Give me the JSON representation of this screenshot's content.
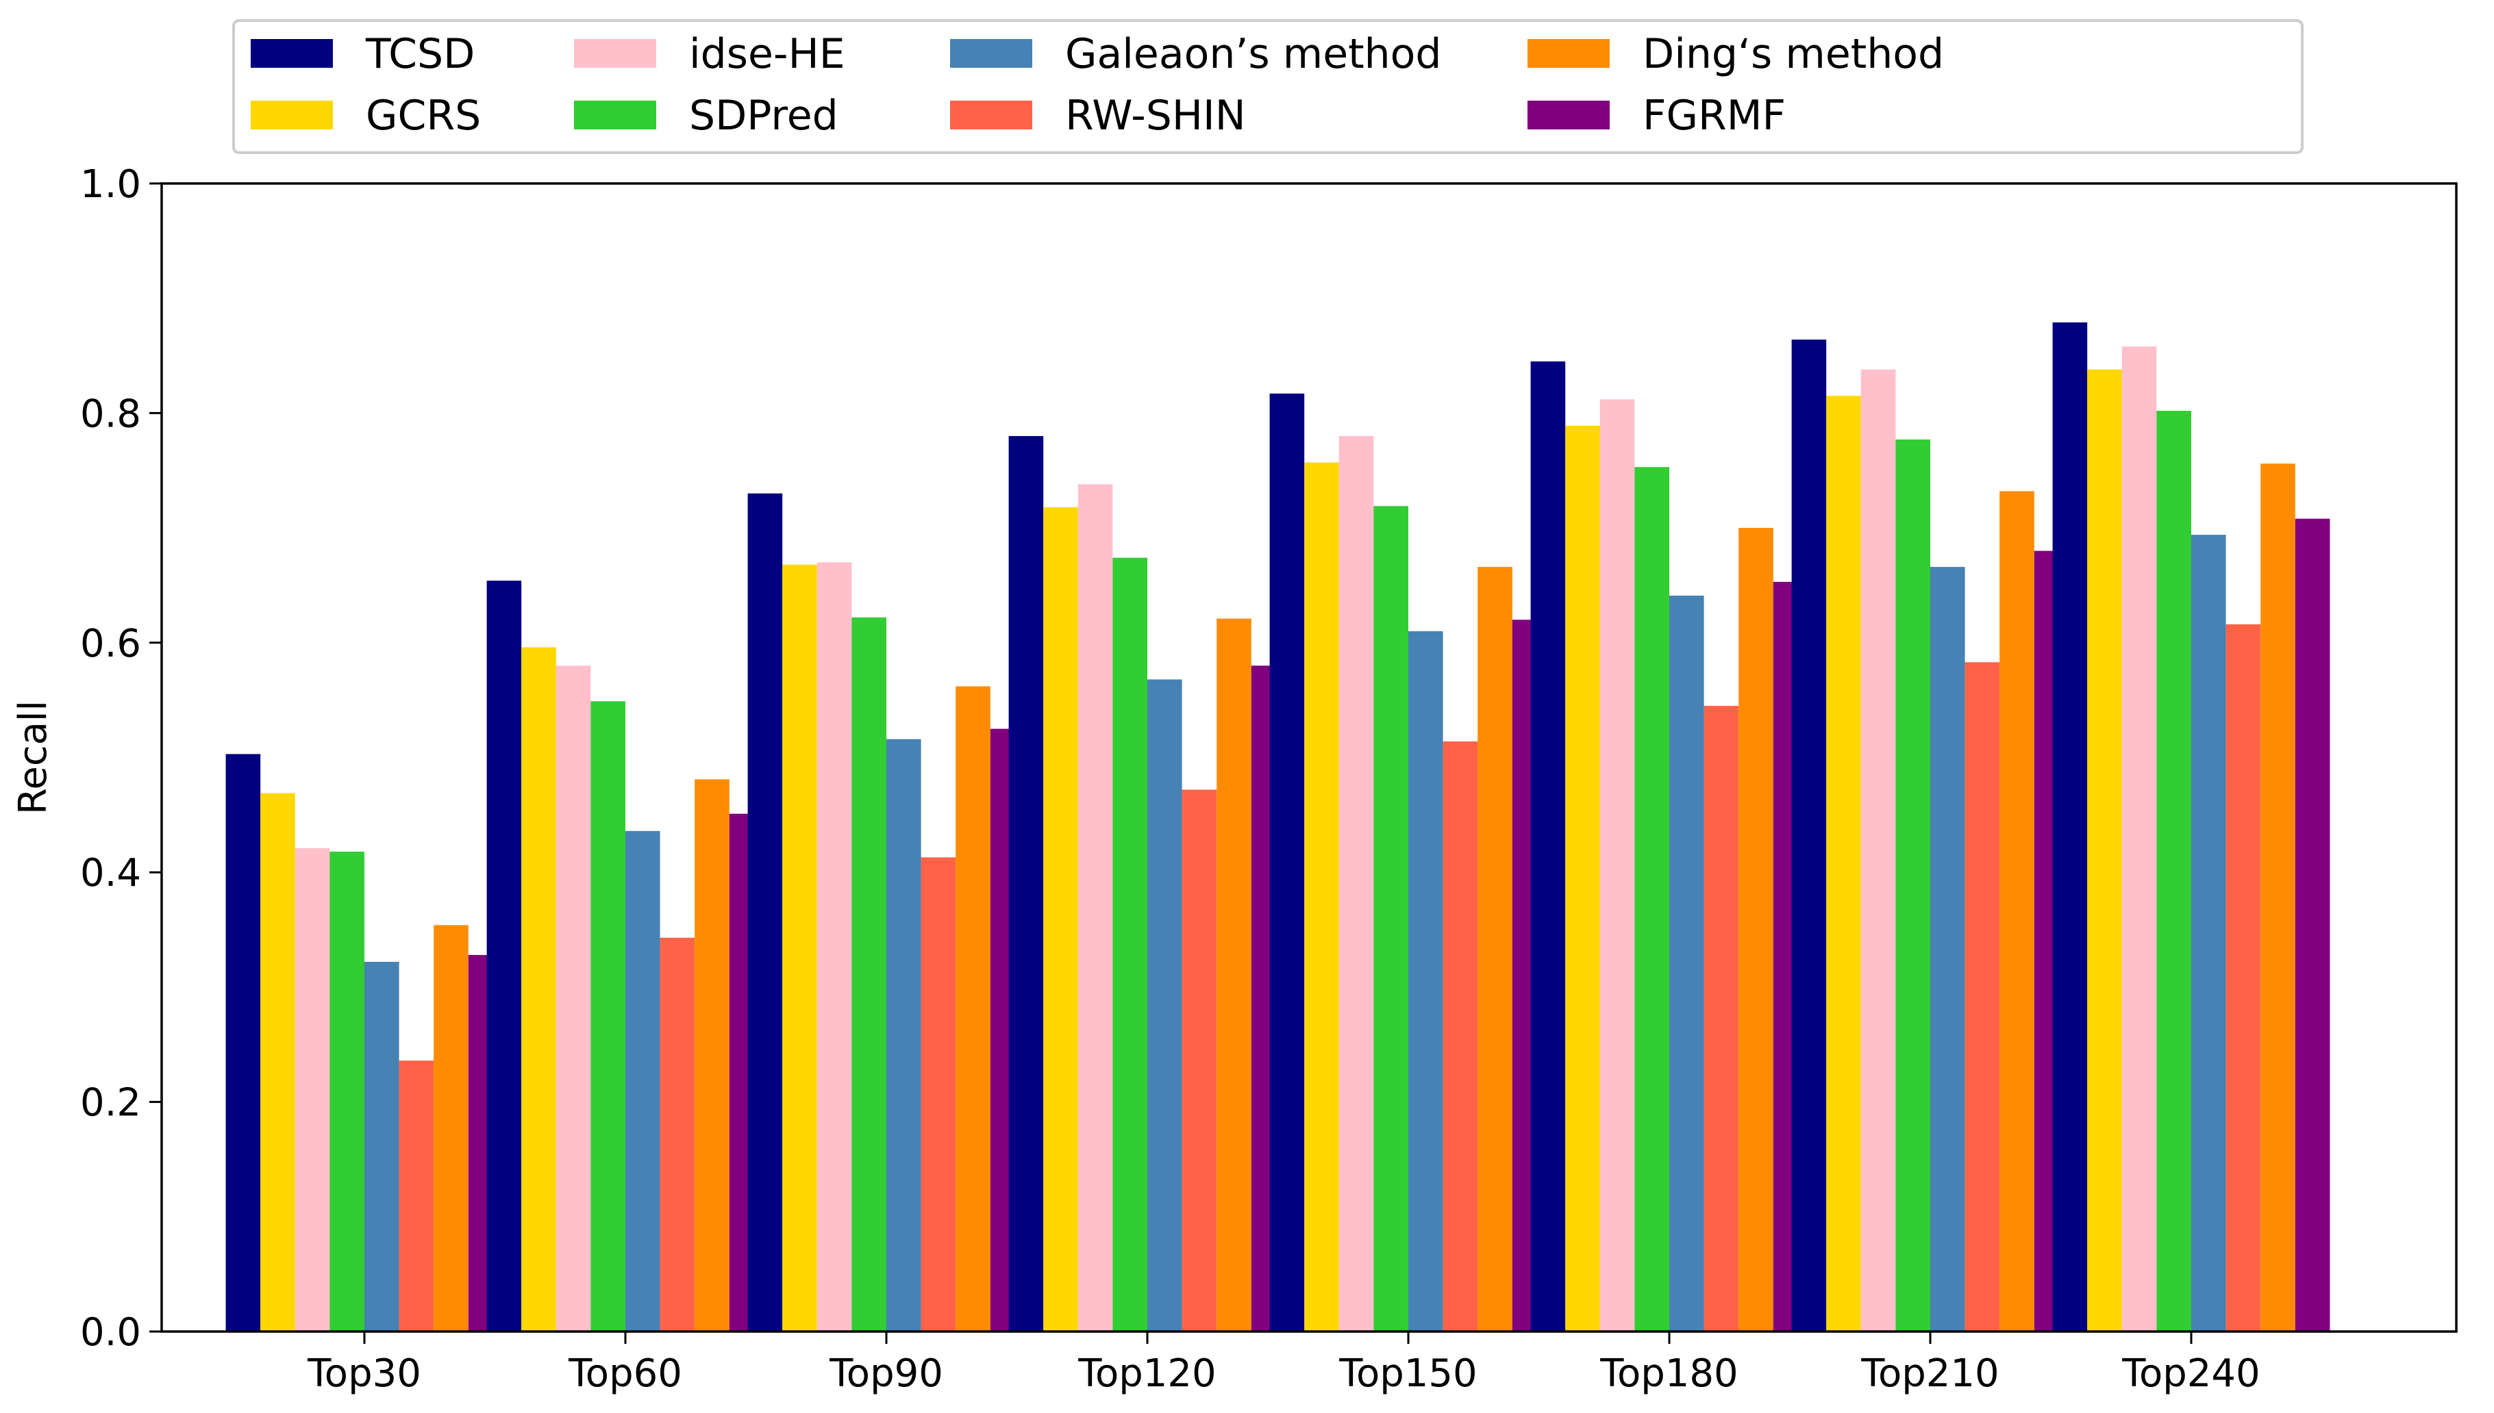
{
  "chart_data": {
    "type": "bar",
    "title": "",
    "xlabel": "",
    "ylabel": "Recall",
    "ylim": [
      0,
      1.0
    ],
    "yticks": [
      "0.0",
      "0.2",
      "0.4",
      "0.6",
      "0.8",
      "1.0"
    ],
    "legend_position": "top",
    "categories": [
      "Top30",
      "Top60",
      "Top90",
      "Top120",
      "Top150",
      "Top180",
      "Top210",
      "Top240"
    ],
    "series": [
      {
        "name": "TCSD",
        "color": "#000080",
        "values": [
          0.503,
          0.654,
          0.73,
          0.78,
          0.817,
          0.845,
          0.864,
          0.879
        ]
      },
      {
        "name": "GCRS",
        "color": "#FFD700",
        "values": [
          0.469,
          0.596,
          0.668,
          0.718,
          0.757,
          0.789,
          0.815,
          0.838
        ]
      },
      {
        "name": "idse-HE",
        "color": "#FFC0CB",
        "values": [
          0.421,
          0.58,
          0.67,
          0.738,
          0.78,
          0.812,
          0.838,
          0.858
        ]
      },
      {
        "name": "SDPred",
        "color": "#32CD32",
        "values": [
          0.418,
          0.549,
          0.622,
          0.674,
          0.719,
          0.753,
          0.777,
          0.802
        ]
      },
      {
        "name": "Galeaon’s method",
        "color": "#4682B4",
        "values": [
          0.322,
          0.436,
          0.516,
          0.568,
          0.61,
          0.641,
          0.666,
          0.694
        ]
      },
      {
        "name": "RW-SHIN",
        "color": "#FF6347",
        "values": [
          0.236,
          0.343,
          0.413,
          0.472,
          0.514,
          0.545,
          0.583,
          0.616
        ]
      },
      {
        "name": "Ding‘s method",
        "color": "#FF8C00",
        "values": [
          0.354,
          0.481,
          0.562,
          0.621,
          0.666,
          0.7,
          0.732,
          0.756
        ]
      },
      {
        "name": "FGRMF",
        "color": "#800080",
        "values": [
          0.328,
          0.451,
          0.525,
          0.58,
          0.62,
          0.653,
          0.68,
          0.708
        ]
      }
    ]
  }
}
